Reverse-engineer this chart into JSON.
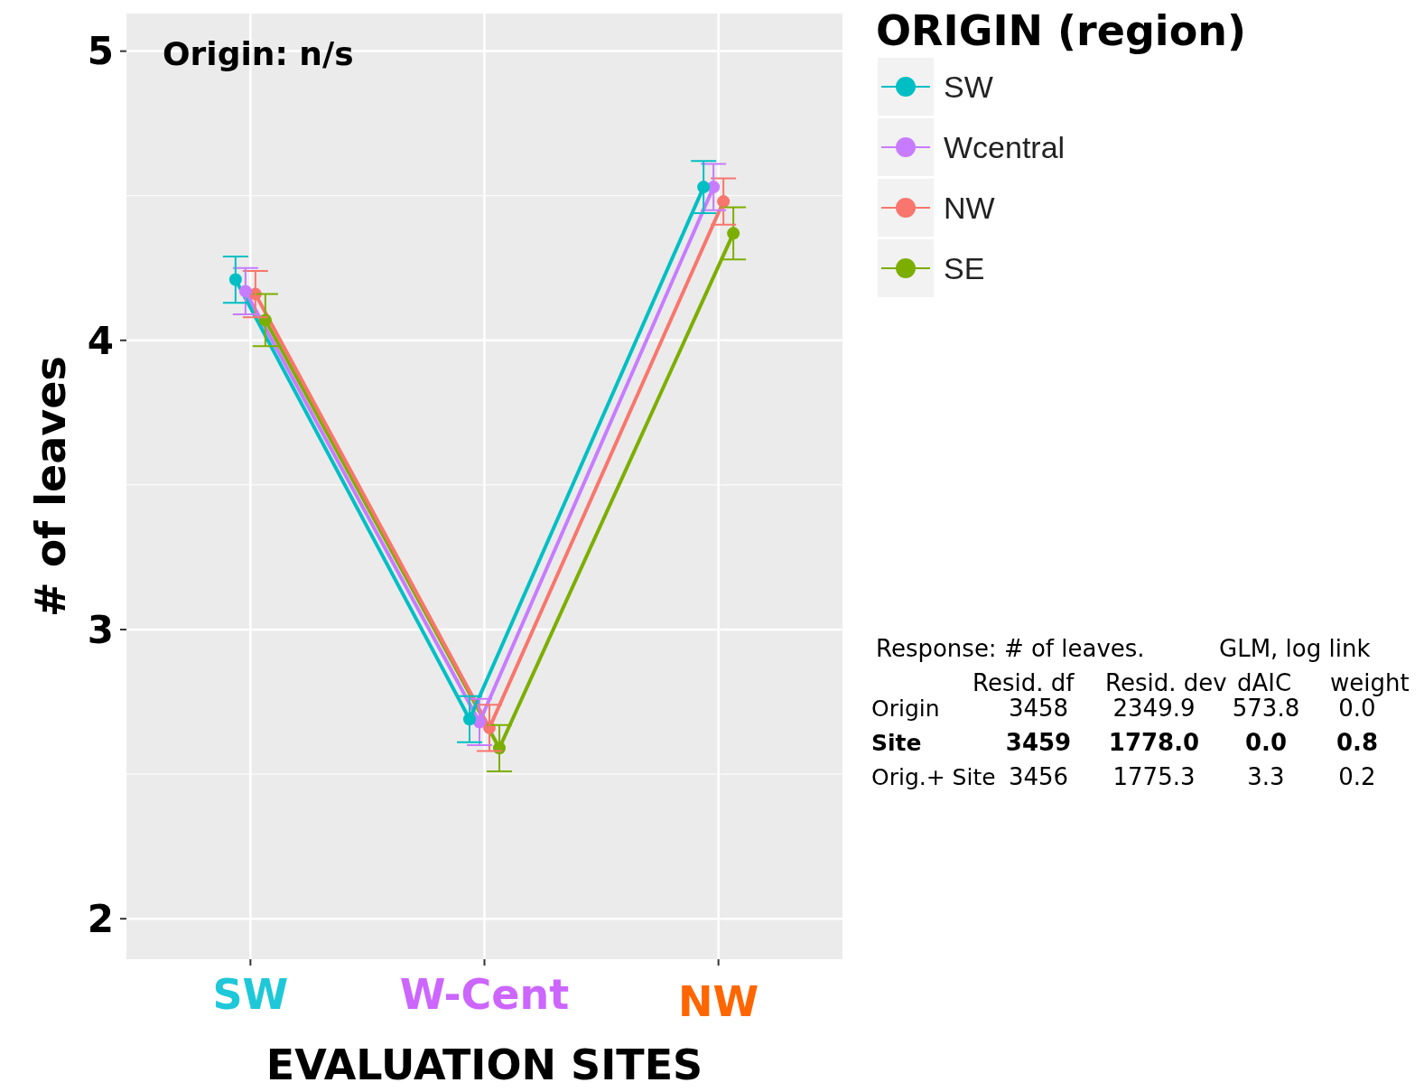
{
  "chart_data": {
    "type": "line",
    "xlabel": "EVALUATION SITES",
    "ylabel": "# of leaves",
    "legend_title": "ORIGIN (region)",
    "categories": [
      "SW",
      "W-Cent",
      "NW"
    ],
    "series": [
      {
        "name": "SW",
        "color": "#00bfc4",
        "values": [
          4.21,
          2.69,
          4.53
        ],
        "errors": [
          0.08,
          0.08,
          0.09
        ]
      },
      {
        "name": "Wcentral",
        "color": "#c77cff",
        "values": [
          4.17,
          2.68,
          4.53
        ],
        "errors": [
          0.08,
          0.08,
          0.08
        ]
      },
      {
        "name": "NW",
        "color": "#f8766d",
        "values": [
          4.16,
          2.66,
          4.48
        ],
        "errors": [
          0.08,
          0.08,
          0.08
        ]
      },
      {
        "name": "SE",
        "color": "#7cae00",
        "values": [
          4.07,
          2.59,
          4.37
        ],
        "errors": [
          0.09,
          0.08,
          0.09
        ]
      }
    ],
    "ylim": [
      1.86,
      5.13
    ],
    "yticks": [
      2,
      3,
      4,
      5
    ],
    "grid": true,
    "legend": "top right",
    "marker": "circle",
    "line_style": "solid",
    "annotations": [
      "Origin: n/s",
      "Response: # of leaves.",
      "GLM, log link",
      "Resid. df",
      "Resid. dev",
      "dAIC",
      "weight",
      "Origin",
      "3458",
      "2349.9",
      "573.8",
      "0.0",
      "Site",
      "3459",
      "1778.0",
      "0.0",
      "0.8",
      "Orig.+ Site",
      "3456",
      "1775.3",
      "3.3",
      "0.2"
    ]
  }
}
